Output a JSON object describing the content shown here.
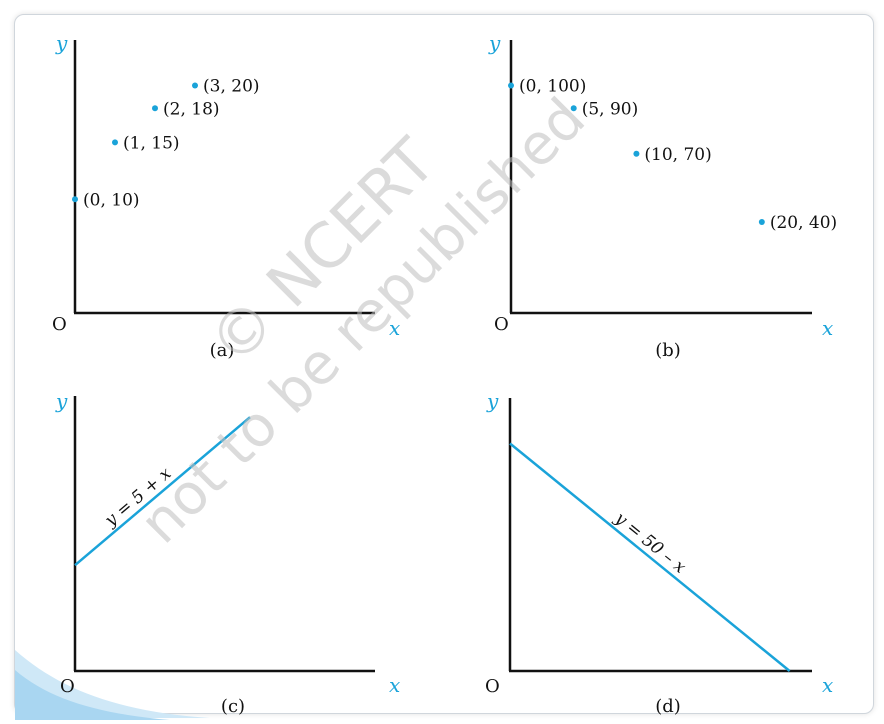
{
  "watermark": {
    "line1": "© NCERT",
    "line2": "not to be republished"
  },
  "colors": {
    "accent": "#1aa3d9",
    "axis": "#111111",
    "corner_wave": "#cfe8f7"
  },
  "chart_data": [
    {
      "panel": "a",
      "type": "scatter",
      "caption": "(a)",
      "xlabel": "x",
      "ylabel": "y",
      "origin_label": "O",
      "points": [
        {
          "x": 0,
          "y": 10,
          "label": "(0, 10)"
        },
        {
          "x": 1,
          "y": 15,
          "label": "(1, 15)"
        },
        {
          "x": 2,
          "y": 18,
          "label": "(2, 18)"
        },
        {
          "x": 3,
          "y": 20,
          "label": "(3, 20)"
        }
      ],
      "xlim": [
        0,
        7.5
      ],
      "ylim": [
        0,
        24
      ]
    },
    {
      "panel": "b",
      "type": "scatter",
      "caption": "(b)",
      "xlabel": "x",
      "ylabel": "y",
      "origin_label": "O",
      "points": [
        {
          "x": 0,
          "y": 100,
          "label": "(0, 100)"
        },
        {
          "x": 5,
          "y": 90,
          "label": "(5, 90)"
        },
        {
          "x": 10,
          "y": 70,
          "label": "(10, 70)"
        },
        {
          "x": 20,
          "y": 40,
          "label": "(20, 40)"
        }
      ],
      "xlim": [
        0,
        24
      ],
      "ylim": [
        0,
        120
      ]
    },
    {
      "panel": "c",
      "type": "line",
      "caption": "(c)",
      "xlabel": "x",
      "ylabel": "y",
      "origin_label": "O",
      "equation": "y = 5 + x",
      "series": [
        {
          "x": [
            0,
            7
          ],
          "y": [
            5,
            12
          ]
        }
      ],
      "xlim": [
        0,
        12
      ],
      "ylim": [
        0,
        13
      ]
    },
    {
      "panel": "d",
      "type": "line",
      "caption": "(d)",
      "xlabel": "x",
      "ylabel": "y",
      "origin_label": "O",
      "equation": "y = 50 – x",
      "series": [
        {
          "x": [
            0,
            50
          ],
          "y": [
            50,
            0
          ]
        }
      ],
      "xlim": [
        0,
        54
      ],
      "ylim": [
        0,
        60
      ]
    }
  ]
}
